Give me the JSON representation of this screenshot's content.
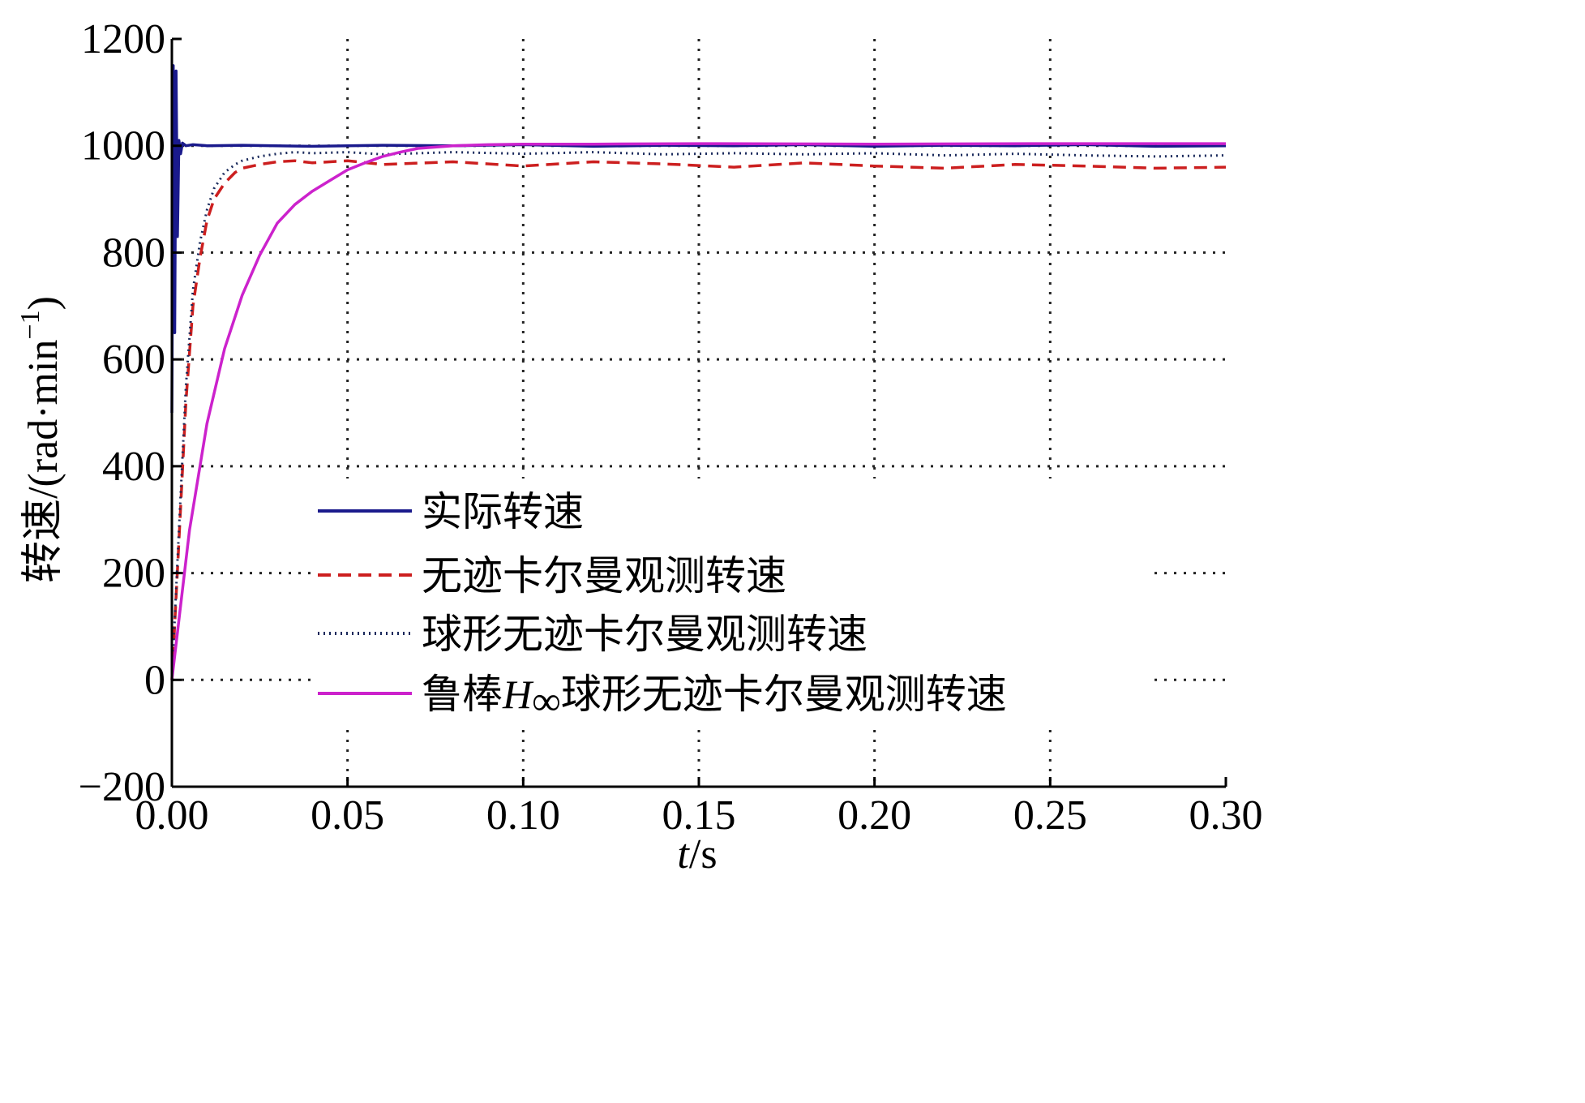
{
  "chart_data": {
    "type": "line",
    "title": "",
    "xlabel": "t/s",
    "xlabel_parts": {
      "var": "t",
      "unit": "/s"
    },
    "ylabel": "转速/(rad·min−1)",
    "ylabel_parts": {
      "main": "转速/(rad·min",
      "sup": "−1",
      "close": ")"
    },
    "xlim": [
      0,
      0.3
    ],
    "ylim": [
      -200,
      1200
    ],
    "xticks": [
      0,
      0.05,
      0.1,
      0.15,
      0.2,
      0.25,
      0.3
    ],
    "xtick_labels": [
      "0.00",
      "0.05",
      "0.10",
      "0.15",
      "0.20",
      "0.25",
      "0.30"
    ],
    "yticks": [
      -200,
      0,
      200,
      400,
      600,
      800,
      1000,
      1200
    ],
    "ytick_labels": [
      "−200",
      "0",
      "200",
      "400",
      "600",
      "800",
      "1000",
      "1200"
    ],
    "grid": true,
    "grid_style": "dotted",
    "legend_position": "lower-center",
    "series": [
      {
        "name": "实际转速",
        "color": "#1a1a8c",
        "style": "solid",
        "x": [
          0,
          0.0004,
          0.0008,
          0.0012,
          0.0016,
          0.002,
          0.0025,
          0.003,
          0.004,
          0.006,
          0.01,
          0.02,
          0.04,
          0.06,
          0.08,
          0.1,
          0.12,
          0.14,
          0.16,
          0.18,
          0.2,
          0.22,
          0.24,
          0.26,
          0.28,
          0.3
        ],
        "y": [
          500,
          1150,
          650,
          1140,
          830,
          1010,
          985,
          1005,
          1000,
          1002,
          1000,
          1001,
          999,
          1001,
          1000,
          1002,
          999,
          1001,
          1000,
          1002,
          999,
          1001,
          1000,
          1002,
          999,
          1000
        ]
      },
      {
        "name": "无迹卡尔曼观测转速",
        "color": "#cc1f1f",
        "style": "dashed",
        "x": [
          0,
          0.002,
          0.004,
          0.006,
          0.008,
          0.01,
          0.012,
          0.015,
          0.018,
          0.02,
          0.025,
          0.03,
          0.035,
          0.04,
          0.05,
          0.06,
          0.08,
          0.1,
          0.12,
          0.14,
          0.16,
          0.18,
          0.2,
          0.22,
          0.24,
          0.26,
          0.28,
          0.3
        ],
        "y": [
          0,
          260,
          520,
          700,
          790,
          860,
          900,
          930,
          950,
          958,
          965,
          970,
          972,
          968,
          972,
          965,
          970,
          962,
          970,
          966,
          960,
          968,
          962,
          958,
          965,
          962,
          958,
          960
        ]
      },
      {
        "name": "球形无迹卡尔曼观测转速",
        "color": "#1a2a5c",
        "style": "dotted",
        "x": [
          0,
          0.002,
          0.004,
          0.006,
          0.008,
          0.01,
          0.012,
          0.015,
          0.018,
          0.02,
          0.025,
          0.03,
          0.035,
          0.04,
          0.05,
          0.06,
          0.08,
          0.1,
          0.12,
          0.14,
          0.16,
          0.18,
          0.2,
          0.22,
          0.24,
          0.26,
          0.28,
          0.3
        ],
        "y": [
          0,
          280,
          550,
          730,
          820,
          880,
          920,
          950,
          965,
          972,
          980,
          985,
          988,
          986,
          988,
          984,
          988,
          985,
          988,
          984,
          986,
          984,
          986,
          982,
          985,
          982,
          980,
          982
        ]
      },
      {
        "name": "鲁棒H∞球形无迹卡尔曼观测转速",
        "name_parts": {
          "pre": "鲁棒",
          "var": "H",
          "sub": "∞",
          "post": "球形无迹卡尔曼观测转速"
        },
        "color": "#cc22cc",
        "style": "solid",
        "x": [
          0,
          0.005,
          0.01,
          0.015,
          0.02,
          0.025,
          0.03,
          0.035,
          0.04,
          0.045,
          0.05,
          0.055,
          0.06,
          0.065,
          0.07,
          0.08,
          0.09,
          0.1,
          0.12,
          0.15,
          0.2,
          0.25,
          0.3
        ],
        "y": [
          0,
          280,
          480,
          620,
          720,
          795,
          855,
          890,
          915,
          935,
          955,
          968,
          980,
          988,
          995,
          1000,
          1002,
          1003,
          1003,
          1004,
          1003,
          1004,
          1004
        ]
      }
    ]
  }
}
